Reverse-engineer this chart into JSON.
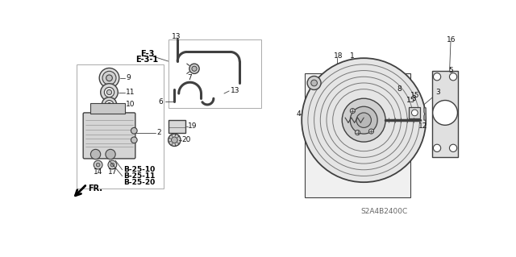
{
  "bg_color": "#ffffff",
  "line_color": "#404040",
  "text_color": "#111111",
  "bold_color": "#000000",
  "figsize": [
    6.4,
    3.19
  ],
  "dpi": 100,
  "labels": {
    "e3": "E-3",
    "e31": "E-3-1",
    "ref1": "B-25-10",
    "ref2": "B-25-11",
    "ref3": "B-25-20",
    "fr": "FR.",
    "code": "S2A4B2400C"
  }
}
